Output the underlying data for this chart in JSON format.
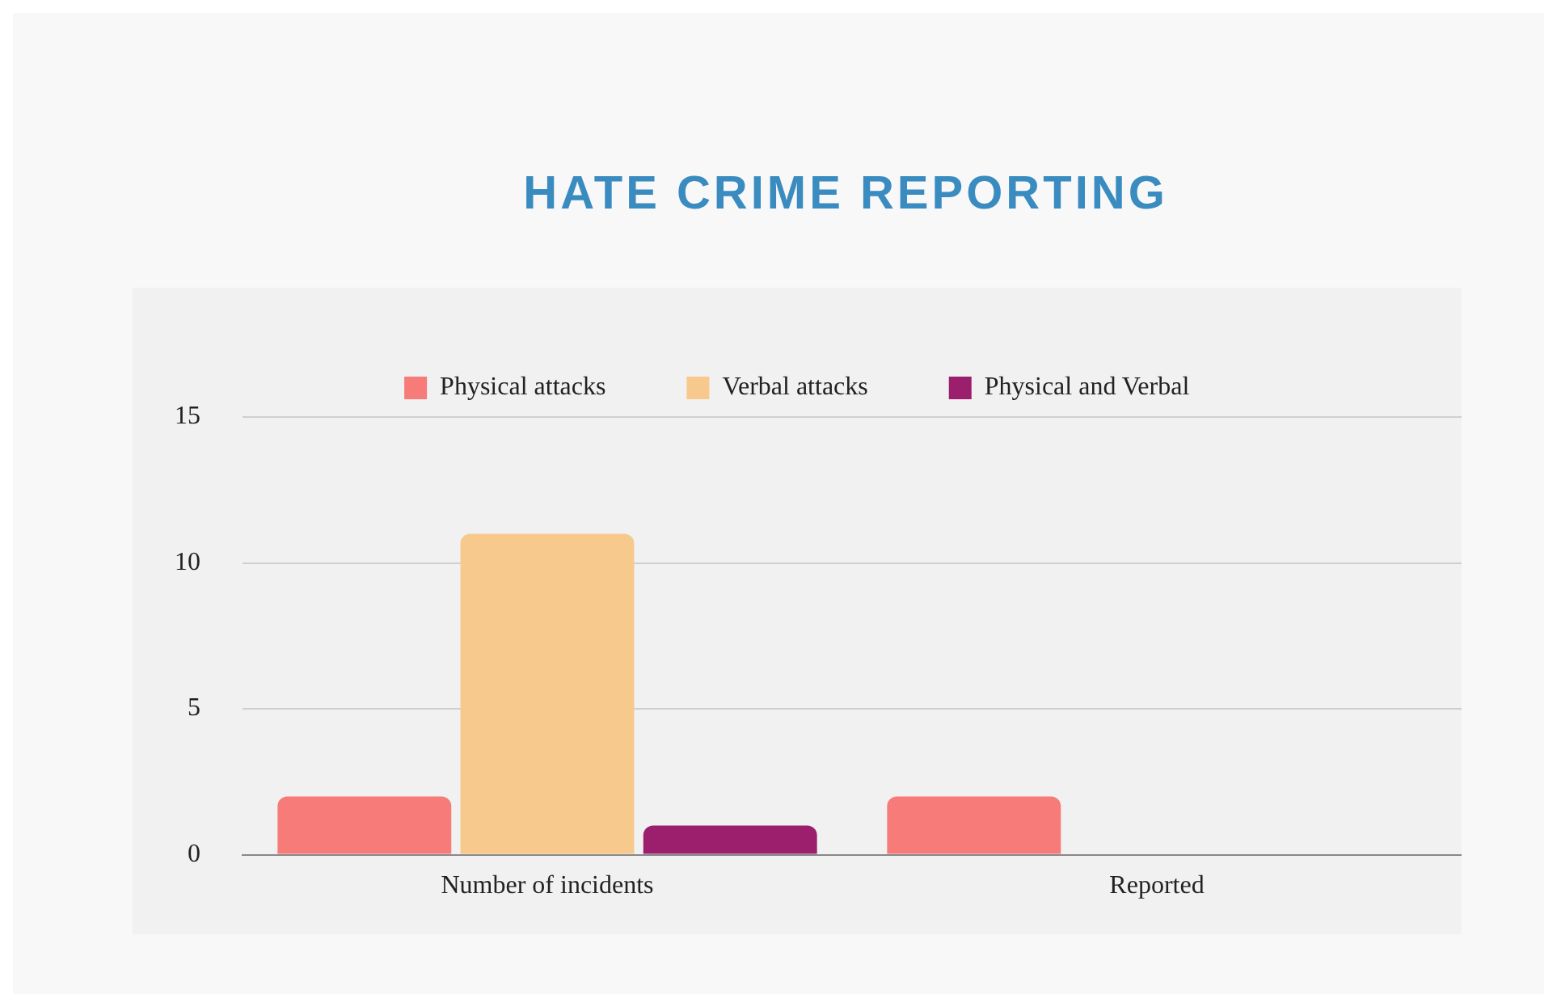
{
  "chart_data": {
    "type": "bar",
    "title": "HATE CRIME REPORTING",
    "categories": [
      "Number of incidents",
      "Reported"
    ],
    "series": [
      {
        "name": "Physical attacks",
        "color": "#f77b78",
        "values": [
          2,
          2
        ]
      },
      {
        "name": "Verbal attacks",
        "color": "#f7c98d",
        "values": [
          11,
          0
        ]
      },
      {
        "name": "Physical and Verbal",
        "color": "#9b1f6d",
        "values": [
          1,
          0
        ]
      }
    ],
    "ylim": [
      0,
      15
    ],
    "yticks": [
      0,
      5,
      10,
      15
    ],
    "grid": "y",
    "legend": "top"
  }
}
